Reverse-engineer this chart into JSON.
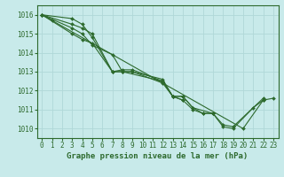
{
  "background_color": "#c8eaea",
  "grid_color": "#b0d8d8",
  "line_color": "#2d6a2d",
  "title": "Graphe pression niveau de la mer (hPa)",
  "xlim": [
    -0.5,
    23.5
  ],
  "ylim": [
    1009.5,
    1016.5
  ],
  "yticks": [
    1010,
    1011,
    1012,
    1013,
    1014,
    1015,
    1016
  ],
  "xticks": [
    0,
    1,
    2,
    3,
    4,
    5,
    6,
    7,
    8,
    9,
    10,
    11,
    12,
    13,
    14,
    15,
    16,
    17,
    18,
    19,
    20,
    21,
    22,
    23
  ],
  "title_fontsize": 6.5,
  "tick_fontsize": 5.5,
  "series": [
    [
      [
        0,
        3,
        4,
        5,
        7,
        8,
        9,
        12,
        13,
        14,
        15,
        16,
        17,
        18,
        19,
        21,
        22
      ],
      [
        1016.0,
        1015.8,
        1015.5,
        1014.8,
        1013.0,
        1013.0,
        1013.0,
        1012.6,
        1011.7,
        1011.7,
        1011.1,
        1010.8,
        1010.8,
        1010.1,
        1010.0,
        1011.1,
        1011.5
      ]
    ],
    [
      [
        0,
        3,
        4,
        5,
        7,
        8,
        9,
        12,
        13,
        14,
        15,
        17,
        18,
        19,
        22
      ],
      [
        1016.0,
        1015.0,
        1014.7,
        1014.5,
        1013.0,
        1013.1,
        1013.1,
        1012.5,
        1011.7,
        1011.7,
        1011.1,
        1010.8,
        1010.2,
        1010.1,
        1011.6
      ]
    ],
    [
      [
        0,
        3,
        4,
        5,
        7,
        8,
        12,
        13,
        14
      ],
      [
        1016.0,
        1015.3,
        1015.0,
        1014.4,
        1013.9,
        1013.0,
        1012.5,
        1011.7,
        1011.5
      ]
    ],
    [
      [
        0,
        3,
        4,
        5,
        7,
        8,
        9,
        12,
        13,
        14,
        15,
        16,
        17
      ],
      [
        1016.0,
        1015.5,
        1015.3,
        1015.0,
        1013.0,
        1013.0,
        1013.0,
        1012.4,
        1011.7,
        1011.5,
        1011.0,
        1010.8,
        1010.8
      ]
    ],
    [
      [
        0,
        1,
        20,
        22,
        23
      ],
      [
        1016.0,
        1015.7,
        1010.0,
        1011.5,
        1011.6
      ]
    ]
  ]
}
